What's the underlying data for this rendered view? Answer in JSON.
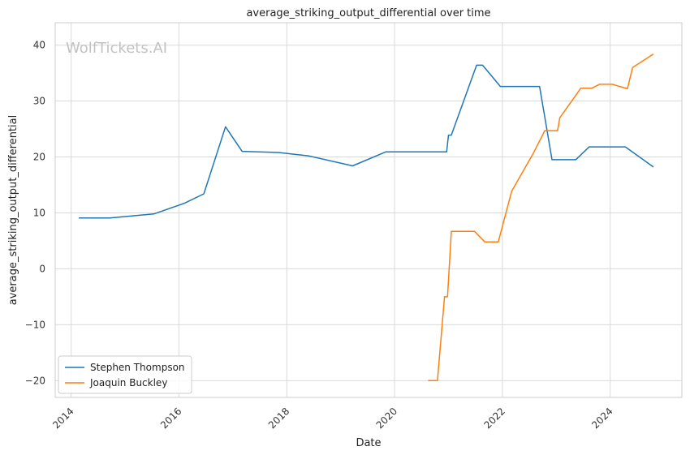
{
  "chart_data": {
    "type": "line",
    "title": "average_striking_output_differential over time",
    "xlabel": "Date",
    "ylabel": "average_striking_output_differential",
    "watermark": "WolfTickets.AI",
    "x_ticks": [
      "2014",
      "2016",
      "2018",
      "2020",
      "2022",
      "2024"
    ],
    "y_ticks": [
      "−20",
      "−10",
      "0",
      "10",
      "20",
      "30",
      "40"
    ],
    "xlim": [
      "2013-09-15",
      "2025-05-01"
    ],
    "ylim": [
      -23,
      44
    ],
    "grid": true,
    "legend_position": "lower-left",
    "series": [
      {
        "name": "Stephen Thompson",
        "color": "#1f77b4",
        "points": [
          [
            "2014-02-22",
            9.1
          ],
          [
            "2014-09-20",
            9.1
          ],
          [
            "2015-07-15",
            9.8
          ],
          [
            "2016-02-06",
            11.7
          ],
          [
            "2016-06-18",
            13.4
          ],
          [
            "2016-11-12",
            25.4
          ],
          [
            "2017-03-04",
            21.0
          ],
          [
            "2017-11-04",
            20.8
          ],
          [
            "2018-05-26",
            20.2
          ],
          [
            "2019-03-23",
            18.4
          ],
          [
            "2019-11-02",
            20.9
          ],
          [
            "2020-12-19",
            20.9
          ],
          [
            "2021-01-01",
            23.9
          ],
          [
            "2021-01-20",
            23.9
          ],
          [
            "2021-07-10",
            36.4
          ],
          [
            "2021-08-20",
            36.4
          ],
          [
            "2021-12-18",
            32.6
          ],
          [
            "2022-09-10",
            32.6
          ],
          [
            "2022-12-03",
            19.5
          ],
          [
            "2023-05-13",
            19.5
          ],
          [
            "2023-08-12",
            21.8
          ],
          [
            "2024-04-13",
            21.8
          ],
          [
            "2024-10-20",
            18.2
          ]
        ]
      },
      {
        "name": "Joaquin Buckley",
        "color": "#ff7f0e",
        "points": [
          [
            "2020-08-15",
            -20.0
          ],
          [
            "2020-10-18",
            -20.0
          ],
          [
            "2020-12-05",
            -5.0
          ],
          [
            "2020-12-25",
            -5.0
          ],
          [
            "2021-01-20",
            6.7
          ],
          [
            "2021-06-26",
            6.7
          ],
          [
            "2021-09-04",
            4.8
          ],
          [
            "2021-12-04",
            4.8
          ],
          [
            "2022-03-05",
            13.9
          ],
          [
            "2022-07-30",
            20.7
          ],
          [
            "2022-10-15",
            24.7
          ],
          [
            "2023-01-10",
            24.7
          ],
          [
            "2023-01-25",
            27.0
          ],
          [
            "2023-06-17",
            32.3
          ],
          [
            "2023-08-31",
            32.3
          ],
          [
            "2023-10-21",
            33.0
          ],
          [
            "2024-01-15",
            33.0
          ],
          [
            "2024-04-27",
            32.2
          ],
          [
            "2024-06-01",
            36.0
          ],
          [
            "2024-10-20",
            38.4
          ]
        ]
      }
    ]
  }
}
